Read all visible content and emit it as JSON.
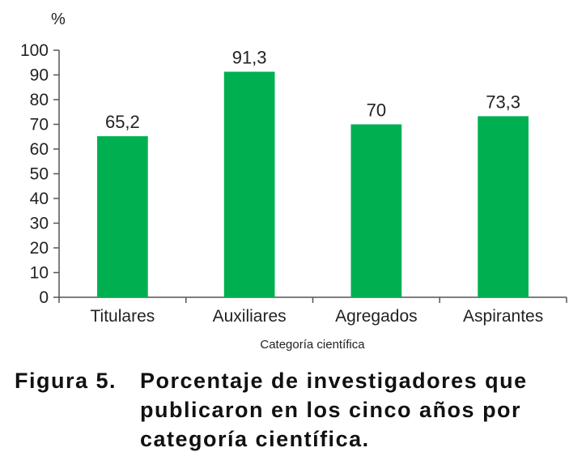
{
  "chart_data": {
    "type": "bar",
    "categories": [
      "Titulares",
      "Auxiliares",
      "Agregados",
      "Aspirantes"
    ],
    "values": [
      65.2,
      91.3,
      70,
      73.3
    ],
    "value_labels": [
      "65,2",
      "91,3",
      "70",
      "73,3"
    ],
    "xlabel": "Categoría científica",
    "ylabel": "%",
    "ylim": [
      0,
      100
    ],
    "yticks": [
      0,
      10,
      20,
      30,
      40,
      50,
      60,
      70,
      80,
      90,
      100
    ],
    "bar_color": "#00b050",
    "grid": false,
    "legend": "none"
  },
  "caption": {
    "label": "Figura 5.",
    "text": "Porcentaje de investigadores que publicaron en los cinco años por categoría científica."
  }
}
